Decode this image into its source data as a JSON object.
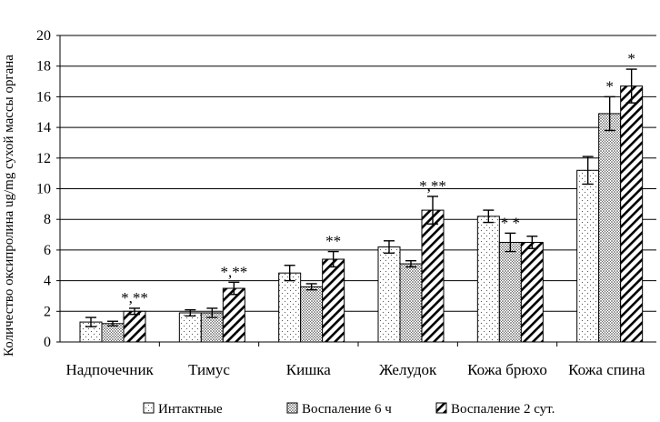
{
  "chart_data": {
    "type": "bar",
    "title": "",
    "xlabel": "",
    "ylabel": "Количество оксипролина ug/mg сухой массы органа",
    "ylim": [
      0,
      20
    ],
    "yticks": [
      0,
      2,
      4,
      6,
      8,
      10,
      12,
      14,
      16,
      18,
      20
    ],
    "grid": "horizontal",
    "legend_position": "bottom",
    "categories": [
      "Надпочечник",
      "Тимус",
      "Кишка",
      "Желудок",
      "Кожа брюхо",
      "Кожа спина"
    ],
    "series": [
      {
        "name": "Интактные",
        "pattern": "sparse-dots",
        "values": [
          1.3,
          1.9,
          4.5,
          6.2,
          8.2,
          11.2
        ],
        "errors": [
          0.3,
          0.2,
          0.5,
          0.4,
          0.4,
          0.9
        ],
        "markers": [
          "",
          "",
          "",
          "",
          "",
          ""
        ]
      },
      {
        "name": "Воспаление 6 ч",
        "pattern": "dense-dots",
        "values": [
          1.2,
          1.9,
          3.6,
          5.1,
          6.5,
          14.9
        ],
        "errors": [
          0.15,
          0.3,
          0.2,
          0.2,
          0.6,
          1.1
        ],
        "markers": [
          "",
          "",
          "",
          "",
          "* *",
          "*"
        ]
      },
      {
        "name": "Воспаление 2 сут.",
        "pattern": "hatch",
        "values": [
          2.0,
          3.5,
          5.4,
          8.6,
          6.5,
          16.7
        ],
        "errors": [
          0.2,
          0.4,
          0.5,
          0.9,
          0.4,
          1.1
        ],
        "markers": [
          "*,**",
          "*,**",
          "**",
          "*,**",
          "",
          "*"
        ]
      }
    ]
  },
  "colors": {
    "axis": "#000000",
    "grid": "#000000",
    "bar_fill": "#ffffff"
  }
}
